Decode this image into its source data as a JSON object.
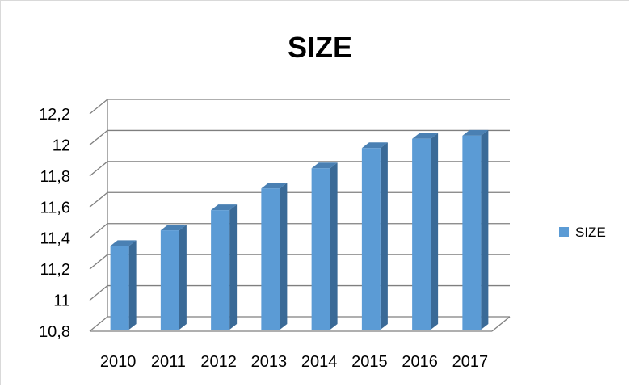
{
  "chart_data": {
    "type": "bar",
    "title": "SIZE",
    "xlabel": "",
    "ylabel": "",
    "categories": [
      "2010",
      "2011",
      "2012",
      "2013",
      "2014",
      "2015",
      "2016",
      "2017"
    ],
    "series": [
      {
        "name": "SIZE",
        "values": [
          11.35,
          11.45,
          11.58,
          11.72,
          11.85,
          11.98,
          12.04,
          12.06
        ]
      }
    ],
    "ylim": [
      10.8,
      12.2
    ],
    "yticks": [
      "10,8",
      "11",
      "11,2",
      "11,4",
      "11,6",
      "11,8",
      "12",
      "12,2"
    ],
    "grid": true,
    "legend_position": "right",
    "colors": {
      "bar_front": "#5b9bd5",
      "bar_side": "#3a6a97",
      "bar_top": "#4a80b3",
      "grid": "#7f7f7f"
    }
  }
}
